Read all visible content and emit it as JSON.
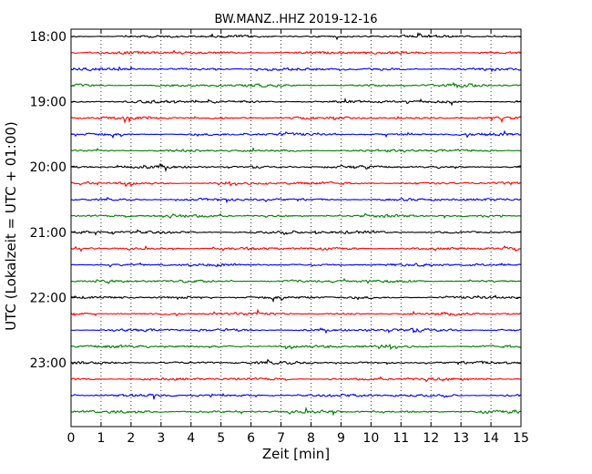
{
  "chart_data": {
    "type": "line",
    "title": "BW.MANZ..HHZ 2019-12-16",
    "xlabel": "Zeit  [min]",
    "ylabel": "UTC (Lokalzeit = UTC + 01:00)",
    "xlim": [
      0,
      15
    ],
    "xticks": [
      0,
      1,
      2,
      3,
      4,
      5,
      6,
      7,
      8,
      9,
      10,
      11,
      12,
      13,
      14,
      15
    ],
    "y_tick_labels": [
      "18:00",
      "19:00",
      "20:00",
      "21:00",
      "22:00",
      "23:00"
    ],
    "trace_start_hour": 18,
    "trace_interval_minutes": 15,
    "trace_count": 24,
    "trace_colors": [
      "#000000",
      "#ff0000",
      "#0000ff",
      "#008000"
    ],
    "grid": {
      "x": true,
      "y": false,
      "style": "dotted"
    }
  }
}
